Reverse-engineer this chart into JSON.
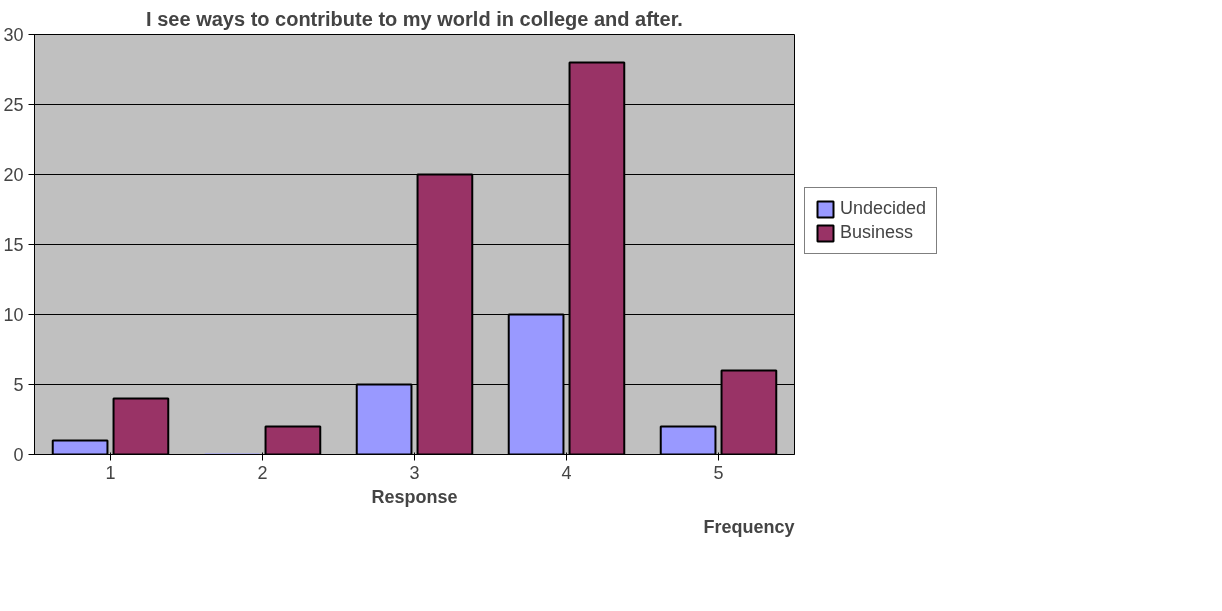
{
  "chart_data": {
    "type": "bar",
    "title": "I see ways to contribute to my world in college and after.",
    "xlabel": "Response",
    "annotations": [
      "Frequency"
    ],
    "categories": [
      "1",
      "2",
      "3",
      "4",
      "5"
    ],
    "series": [
      {
        "name": "Undecided",
        "color": "#9999ff",
        "values": [
          1,
          0,
          5,
          10,
          2
        ]
      },
      {
        "name": "Business",
        "color": "#993366",
        "values": [
          4,
          2,
          20,
          28,
          6
        ]
      }
    ],
    "ylim": [
      0,
      30
    ],
    "yticks": [
      0,
      5,
      10,
      15,
      20,
      25,
      30
    ],
    "grid": "y",
    "legend": "right"
  }
}
